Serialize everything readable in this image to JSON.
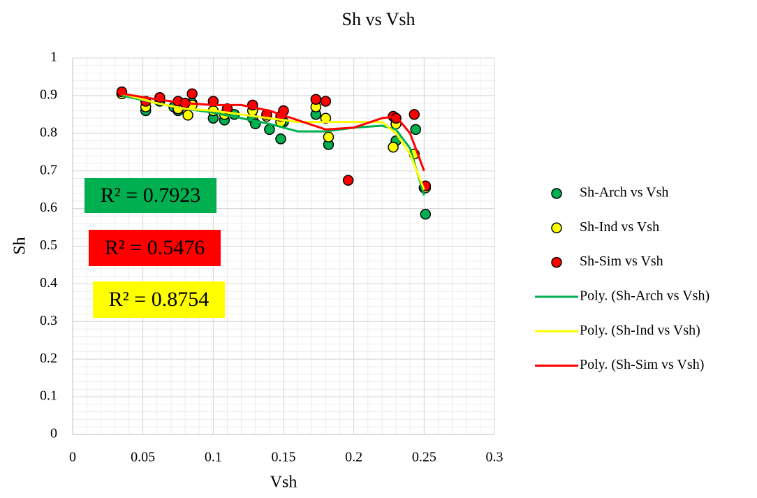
{
  "chart_data": {
    "type": "scatter",
    "title": "Sh vs Vsh",
    "x_label": "Vsh",
    "y_label": "Sh",
    "xlim": [
      0,
      0.3
    ],
    "ylim": [
      0,
      1
    ],
    "xticks": [
      0,
      0.05,
      0.1,
      0.15,
      0.2,
      0.25,
      0.3
    ],
    "yticks": [
      0,
      0.1,
      0.2,
      0.3,
      0.4,
      0.5,
      0.6,
      0.7,
      0.8,
      0.9,
      1
    ],
    "grid": true,
    "minor_divisions": 5,
    "legend": "right",
    "series": [
      {
        "name": "Sh-Arch vs Vsh",
        "kind": "scatter",
        "color": "#00b050",
        "x": [
          0.035,
          0.052,
          0.062,
          0.072,
          0.075,
          0.08,
          0.085,
          0.1,
          0.108,
          0.115,
          0.128,
          0.13,
          0.14,
          0.148,
          0.15,
          0.173,
          0.182,
          0.23,
          0.244,
          0.25,
          0.251
        ],
        "values": [
          0.905,
          0.86,
          0.885,
          0.87,
          0.86,
          0.875,
          0.88,
          0.84,
          0.835,
          0.85,
          0.84,
          0.825,
          0.81,
          0.785,
          0.83,
          0.85,
          0.77,
          0.78,
          0.81,
          0.655,
          0.585
        ]
      },
      {
        "name": "Sh-Ind vs Vsh",
        "kind": "scatter",
        "color": "#ffff00",
        "x": [
          0.035,
          0.052,
          0.062,
          0.075,
          0.082,
          0.085,
          0.1,
          0.108,
          0.128,
          0.138,
          0.148,
          0.173,
          0.18,
          0.182,
          0.228,
          0.23,
          0.243,
          0.251
        ],
        "values": [
          0.905,
          0.87,
          0.89,
          0.865,
          0.848,
          0.875,
          0.86,
          0.85,
          0.86,
          0.845,
          0.83,
          0.87,
          0.84,
          0.79,
          0.763,
          0.825,
          0.745,
          0.655
        ]
      },
      {
        "name": "Sh-Sim vs Vsh",
        "kind": "scatter",
        "color": "#ff0000",
        "x": [
          0.035,
          0.052,
          0.062,
          0.075,
          0.08,
          0.085,
          0.1,
          0.11,
          0.128,
          0.138,
          0.148,
          0.15,
          0.173,
          0.18,
          0.196,
          0.228,
          0.23,
          0.243,
          0.251
        ],
        "values": [
          0.91,
          0.885,
          0.895,
          0.885,
          0.88,
          0.905,
          0.885,
          0.865,
          0.875,
          0.85,
          0.845,
          0.86,
          0.89,
          0.885,
          0.675,
          0.845,
          0.84,
          0.85,
          0.66
        ]
      },
      {
        "name": "Poly. (Sh-Arch vs Vsh)",
        "kind": "line",
        "color": "#00b050",
        "x": [
          0.035,
          0.06,
          0.08,
          0.1,
          0.12,
          0.14,
          0.16,
          0.18,
          0.2,
          0.22,
          0.23,
          0.24,
          0.25
        ],
        "values": [
          0.9,
          0.88,
          0.865,
          0.855,
          0.84,
          0.825,
          0.805,
          0.805,
          0.815,
          0.82,
          0.81,
          0.76,
          0.635
        ]
      },
      {
        "name": "Poly. (Sh-Ind vs Vsh)",
        "kind": "line",
        "color": "#ffff00",
        "x": [
          0.035,
          0.06,
          0.08,
          0.1,
          0.12,
          0.14,
          0.16,
          0.18,
          0.2,
          0.22,
          0.23,
          0.24,
          0.25
        ],
        "values": [
          0.905,
          0.88,
          0.865,
          0.86,
          0.85,
          0.84,
          0.83,
          0.83,
          0.83,
          0.83,
          0.8,
          0.745,
          0.65
        ]
      },
      {
        "name": "Poly. (Sh-Sim vs Vsh)",
        "kind": "line",
        "color": "#ff0000",
        "x": [
          0.035,
          0.06,
          0.08,
          0.1,
          0.12,
          0.14,
          0.16,
          0.18,
          0.2,
          0.22,
          0.23,
          0.24,
          0.25
        ],
        "values": [
          0.905,
          0.89,
          0.88,
          0.875,
          0.875,
          0.86,
          0.835,
          0.81,
          0.815,
          0.84,
          0.845,
          0.8,
          0.7
        ]
      }
    ],
    "annotations": [
      {
        "text": "R² = 0.7923",
        "color": "#00b050"
      },
      {
        "text": "R² = 0.5476",
        "color": "#ff0000"
      },
      {
        "text": "R² = 0.8754",
        "color": "#ffff00"
      }
    ]
  }
}
